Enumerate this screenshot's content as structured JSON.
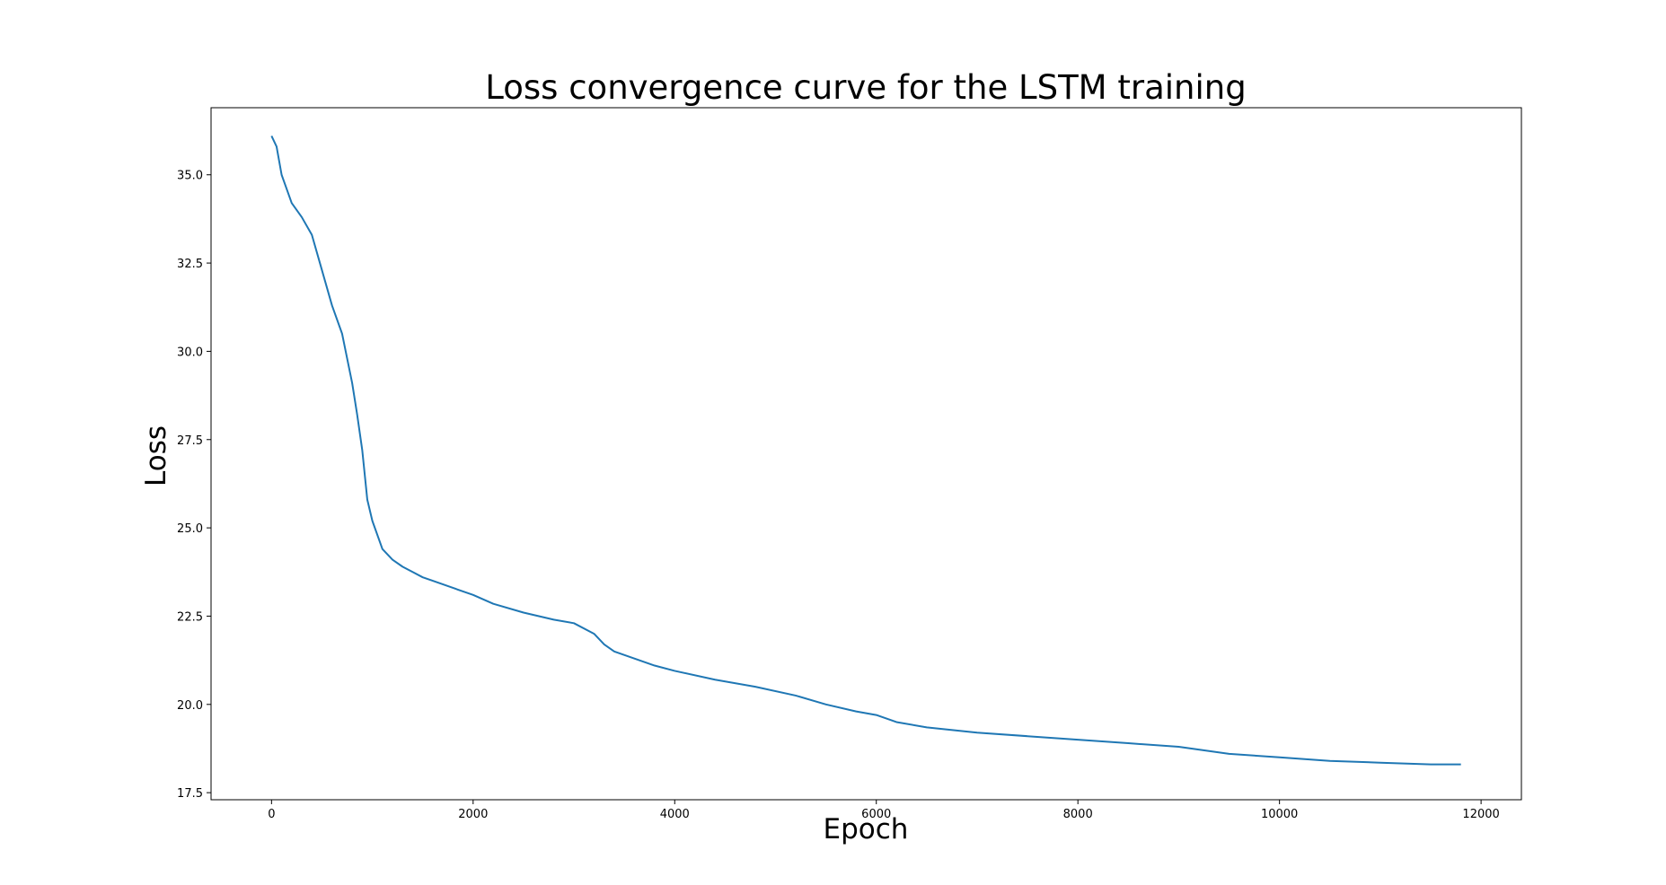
{
  "chart_data": {
    "type": "line",
    "title": "Loss convergence curve for the LSTM training",
    "xlabel": "Epoch",
    "ylabel": "Loss",
    "xlim": [
      -600,
      12400
    ],
    "ylim": [
      17.3,
      36.9
    ],
    "xticks": [
      0,
      2000,
      4000,
      6000,
      8000,
      10000,
      12000
    ],
    "yticks": [
      17.5,
      20.0,
      22.5,
      25.0,
      27.5,
      30.0,
      32.5,
      35.0
    ],
    "xtick_labels": [
      "0",
      "2000",
      "4000",
      "6000",
      "8000",
      "10000",
      "12000"
    ],
    "ytick_labels": [
      "17.5",
      "20.0",
      "22.5",
      "25.0",
      "27.5",
      "30.0",
      "32.5",
      "35.0"
    ],
    "grid": false,
    "series": [
      {
        "color": "#1f77b4",
        "x": [
          0,
          50,
          100,
          150,
          200,
          300,
          400,
          500,
          600,
          700,
          750,
          800,
          850,
          900,
          950,
          1000,
          1100,
          1200,
          1300,
          1400,
          1500,
          1600,
          1800,
          2000,
          2200,
          2500,
          2800,
          3000,
          3200,
          3300,
          3400,
          3600,
          3800,
          4000,
          4400,
          4800,
          5200,
          5500,
          5800,
          6000,
          6200,
          6500,
          7000,
          7500,
          8000,
          8500,
          9000,
          9500,
          10000,
          10500,
          11000,
          11500,
          11800
        ],
        "y": [
          36.1,
          35.8,
          35.0,
          34.6,
          34.2,
          33.8,
          33.3,
          32.3,
          31.3,
          30.5,
          29.8,
          29.1,
          28.2,
          27.2,
          25.8,
          25.2,
          24.4,
          24.1,
          23.9,
          23.75,
          23.6,
          23.5,
          23.3,
          23.1,
          22.85,
          22.6,
          22.4,
          22.3,
          22.0,
          21.7,
          21.5,
          21.3,
          21.1,
          20.95,
          20.7,
          20.5,
          20.25,
          20.0,
          19.8,
          19.7,
          19.5,
          19.35,
          19.2,
          19.1,
          19.0,
          18.9,
          18.8,
          18.6,
          18.5,
          18.4,
          18.35,
          18.3,
          18.3
        ]
      }
    ]
  }
}
